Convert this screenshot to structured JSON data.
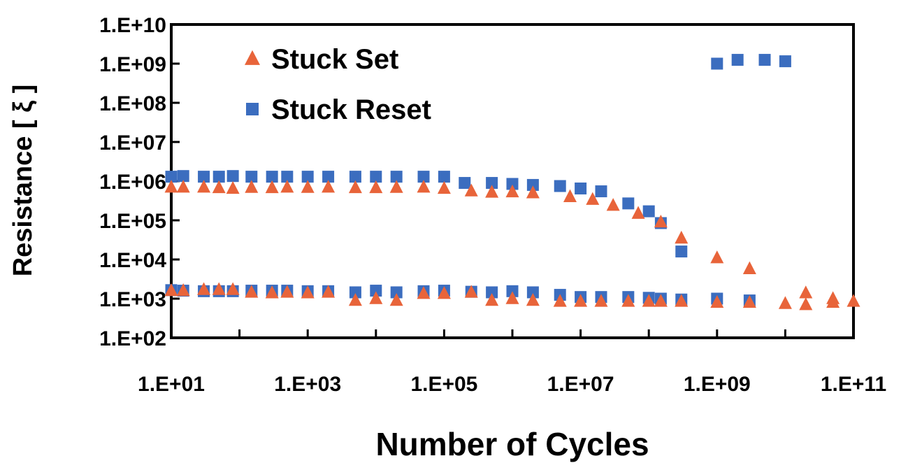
{
  "chart_data": {
    "type": "scatter",
    "xlabel": "Number of Cycles",
    "ylabel": "Resistance [ ξ ]",
    "x_scale": "log",
    "y_scale": "log",
    "xlim": [
      10,
      100000000000
    ],
    "ylim": [
      100,
      10000000000
    ],
    "x_ticks": [
      "1.E+01",
      "1.E+03",
      "1.E+05",
      "1.E+07",
      "1.E+09",
      "1.E+11"
    ],
    "y_ticks": [
      "1.E+10",
      "1.E+09",
      "1.E+08",
      "1.E+07",
      "1.E+06",
      "1.E+05",
      "1.E+04",
      "1.E+03",
      "1.E+02"
    ],
    "grid": false,
    "legend_position": "top-left",
    "series": [
      {
        "name": "Stuck Set",
        "marker": "triangle",
        "color": "#E8643A",
        "points": [
          [
            10,
            700000
          ],
          [
            15,
            700000
          ],
          [
            30,
            700000
          ],
          [
            50,
            680000
          ],
          [
            80,
            650000
          ],
          [
            150,
            690000
          ],
          [
            300,
            680000
          ],
          [
            500,
            700000
          ],
          [
            1000,
            690000
          ],
          [
            2000,
            700000
          ],
          [
            5000,
            680000
          ],
          [
            10000,
            680000
          ],
          [
            20000,
            690000
          ],
          [
            50000,
            700000
          ],
          [
            100000,
            650000
          ],
          [
            250000,
            560000
          ],
          [
            500000,
            520000
          ],
          [
            1000000,
            530000
          ],
          [
            2000000,
            500000
          ],
          [
            7000000,
            400000
          ],
          [
            15000000,
            340000
          ],
          [
            30000000,
            240000
          ],
          [
            70000000,
            150000
          ],
          [
            150000000,
            90000
          ],
          [
            300000000,
            35000
          ],
          [
            1000000000,
            11000
          ],
          [
            3000000000,
            5800
          ],
          [
            10,
            1600
          ],
          [
            15,
            1600
          ],
          [
            30,
            1700
          ],
          [
            50,
            1700
          ],
          [
            80,
            1700
          ],
          [
            150,
            1450
          ],
          [
            300,
            1400
          ],
          [
            500,
            1450
          ],
          [
            1000,
            1400
          ],
          [
            2000,
            1450
          ],
          [
            5000,
            900
          ],
          [
            10000,
            1000
          ],
          [
            20000,
            900
          ],
          [
            50000,
            1350
          ],
          [
            100000,
            1350
          ],
          [
            250000,
            1450
          ],
          [
            500000,
            900
          ],
          [
            1000000,
            1000
          ],
          [
            2000000,
            900
          ],
          [
            5000000,
            850
          ],
          [
            10000000,
            850
          ],
          [
            20000000,
            850
          ],
          [
            50000000,
            850
          ],
          [
            100000000,
            850
          ],
          [
            150000000,
            850
          ],
          [
            300000000,
            850
          ],
          [
            1000000000,
            800
          ],
          [
            3000000000,
            800
          ],
          [
            10000000000,
            750
          ],
          [
            20000000000,
            1400
          ],
          [
            20000000000,
            700
          ],
          [
            50000000000,
            1000
          ],
          [
            50000000000,
            800
          ],
          [
            100000000000,
            850
          ]
        ]
      },
      {
        "name": "Stuck Reset",
        "marker": "square",
        "color": "#3B6DBF",
        "points": [
          [
            10,
            1300000
          ],
          [
            15,
            1350000
          ],
          [
            30,
            1300000
          ],
          [
            50,
            1300000
          ],
          [
            80,
            1350000
          ],
          [
            150,
            1300000
          ],
          [
            300,
            1300000
          ],
          [
            500,
            1300000
          ],
          [
            1000,
            1300000
          ],
          [
            2000,
            1300000
          ],
          [
            5000,
            1300000
          ],
          [
            10000,
            1300000
          ],
          [
            20000,
            1300000
          ],
          [
            50000,
            1300000
          ],
          [
            100000,
            1300000
          ],
          [
            200000,
            900000
          ],
          [
            500000,
            900000
          ],
          [
            1000000,
            850000
          ],
          [
            2000000,
            800000
          ],
          [
            5000000,
            750000
          ],
          [
            10000000,
            650000
          ],
          [
            20000000,
            550000
          ],
          [
            50000000,
            270000
          ],
          [
            100000000,
            170000
          ],
          [
            150000000,
            85000
          ],
          [
            300000000,
            16000
          ],
          [
            1000000000,
            1000000000
          ],
          [
            2000000000,
            1250000000
          ],
          [
            5000000000,
            1250000000
          ],
          [
            10000000000,
            1150000000
          ],
          [
            10,
            1650
          ],
          [
            15,
            1600
          ],
          [
            30,
            1550
          ],
          [
            50,
            1550
          ],
          [
            80,
            1550
          ],
          [
            150,
            1600
          ],
          [
            300,
            1600
          ],
          [
            500,
            1600
          ],
          [
            1000,
            1550
          ],
          [
            2000,
            1550
          ],
          [
            5000,
            1450
          ],
          [
            10000,
            1600
          ],
          [
            20000,
            1450
          ],
          [
            50000,
            1550
          ],
          [
            100000,
            1600
          ],
          [
            250000,
            1500
          ],
          [
            500000,
            1450
          ],
          [
            1000000,
            1550
          ],
          [
            2000000,
            1450
          ],
          [
            5000000,
            1250
          ],
          [
            10000000,
            1100
          ],
          [
            20000000,
            1100
          ],
          [
            50000000,
            1100
          ],
          [
            100000000,
            1050
          ],
          [
            150000000,
            1000
          ],
          [
            300000000,
            950
          ],
          [
            1000000000,
            1000
          ],
          [
            3000000000,
            900
          ]
        ]
      }
    ]
  }
}
